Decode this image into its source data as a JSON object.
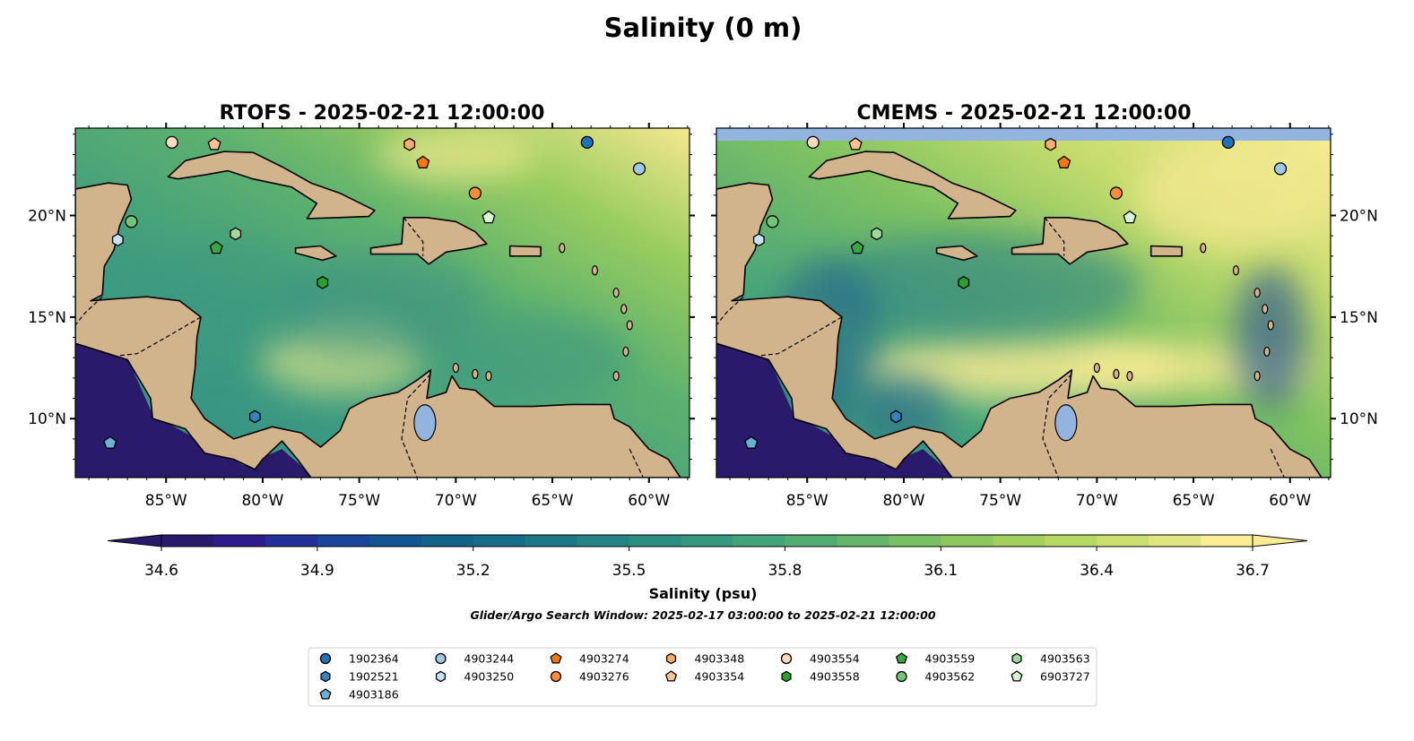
{
  "figure_title": "Salinity (0 m)",
  "panels": [
    {
      "id": "rtofs",
      "title": "RTOFS - 2025-02-21 12:00:00"
    },
    {
      "id": "cmems",
      "title": "CMEMS - 2025-02-21 12:00:00"
    }
  ],
  "lon_labels": [
    {
      "lon": -85,
      "label": "85°W"
    },
    {
      "lon": -80,
      "label": "80°W"
    },
    {
      "lon": -75,
      "label": "75°W"
    },
    {
      "lon": -70,
      "label": "70°W"
    },
    {
      "lon": -65,
      "label": "65°W"
    },
    {
      "lon": -60,
      "label": "60°W"
    }
  ],
  "lat_labels": [
    {
      "lat": 10,
      "label": "10°N"
    },
    {
      "lat": 15,
      "label": "15°N"
    },
    {
      "lat": 20,
      "label": "20°N"
    }
  ],
  "extent": {
    "lon": [
      -89.7,
      -57.9
    ],
    "lat": [
      7.1,
      24.3
    ]
  },
  "colorbar": {
    "label": "Salinity (psu)",
    "min": 34.6,
    "max": 36.7,
    "step": 0.1,
    "ticks": [
      "34.6",
      "34.9",
      "35.2",
      "35.5",
      "35.8",
      "36.1",
      "36.4",
      "36.7"
    ],
    "colors": [
      "#2a1a6c",
      "#2c1d8a",
      "#23309a",
      "#1b4598",
      "#12558f",
      "#12628a",
      "#176d87",
      "#1d7886",
      "#248385",
      "#2c8e82",
      "#36997e",
      "#43a379",
      "#53ad72",
      "#65b66a",
      "#79bf63",
      "#8dc75e",
      "#a2cf5e",
      "#b7d764",
      "#cbde70",
      "#e0e680",
      "#fbed96"
    ]
  },
  "search_window": "Glider/Argo Search Window: 2025-02-17 03:00:00 to 2025-02-21 12:00:00",
  "floats": [
    {
      "id": "1902364",
      "shape": "circle",
      "color": "#2171b5",
      "lon": -63.2,
      "lat": 23.6
    },
    {
      "id": "1902521",
      "shape": "hexagon",
      "color": "#3182bd",
      "lon": -80.4,
      "lat": 10.1
    },
    {
      "id": "4903186",
      "shape": "pentagon",
      "color": "#6baed6",
      "lon": -87.9,
      "lat": 8.8
    },
    {
      "id": "4903244",
      "shape": "circle",
      "color": "#9ecae1",
      "lon": -60.5,
      "lat": 22.3
    },
    {
      "id": "4903250",
      "shape": "hexagon",
      "color": "#c6e2f7",
      "lon": -87.5,
      "lat": 18.8
    },
    {
      "id": "4903274",
      "shape": "pentagon",
      "color": "#f4770f",
      "lon": -71.7,
      "lat": 22.6
    },
    {
      "id": "4903276",
      "shape": "circle",
      "color": "#fd8d3c",
      "lon": -69.0,
      "lat": 21.1
    },
    {
      "id": "4903348",
      "shape": "hexagon",
      "color": "#fdae6b",
      "lon": -72.4,
      "lat": 23.5
    },
    {
      "id": "4903354",
      "shape": "pentagon",
      "color": "#fdc192",
      "lon": -82.5,
      "lat": 23.5
    },
    {
      "id": "4903554",
      "shape": "circle",
      "color": "#fdd9c0",
      "lon": -84.7,
      "lat": 23.6
    },
    {
      "id": "4903558",
      "shape": "hexagon",
      "color": "#2ca02c",
      "lon": -76.9,
      "lat": 16.7
    },
    {
      "id": "4903559",
      "shape": "pentagon",
      "color": "#3aa543",
      "lon": -82.4,
      "lat": 18.4
    },
    {
      "id": "4903562",
      "shape": "circle",
      "color": "#74c476",
      "lon": -86.8,
      "lat": 19.7
    },
    {
      "id": "4903563",
      "shape": "hexagon",
      "color": "#a1d99b",
      "lon": -81.4,
      "lat": 19.1
    },
    {
      "id": "6903727",
      "shape": "pentagon",
      "color": "#d6f5d0",
      "lon": -68.3,
      "lat": 19.9
    }
  ],
  "colors": {
    "land": "#d2b48c",
    "pacific": "#2a1a6c",
    "lake": "#94b4e0",
    "missing": "#94b4e0"
  }
}
